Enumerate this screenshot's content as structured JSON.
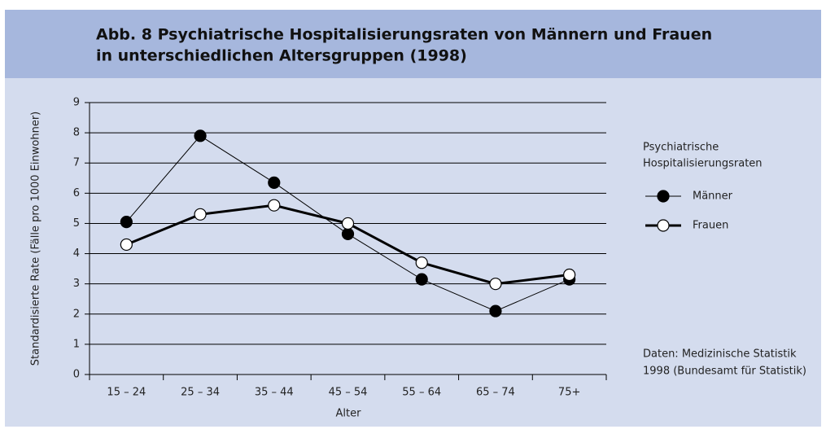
{
  "chart_data": {
    "type": "line",
    "title": [
      "Abb. 8  Psychiatrische Hospitalisierungsraten von Männern und Frauen",
      "in unterschiedlichen Altersgruppen (1998)"
    ],
    "y_label": "Standardisierte Rate (Fälle pro 1000 Einwohner)",
    "x_label": "Alter",
    "categories": [
      "15 – 24",
      "25 – 34",
      "35 – 44",
      "45 – 54",
      "55 – 64",
      "65 – 74",
      "75+"
    ],
    "series": [
      {
        "name": "Männer",
        "color": "#000000",
        "marker_fill": "#000000",
        "line_width": 1,
        "values": [
          5.05,
          7.9,
          6.35,
          4.65,
          3.15,
          2.1,
          3.15
        ]
      },
      {
        "name": "Frauen",
        "color": "#000000",
        "marker_fill": "#ffffff",
        "line_width": 3,
        "values": [
          4.3,
          5.3,
          5.6,
          5.0,
          3.7,
          3.0,
          3.3
        ]
      }
    ],
    "ylim": [
      0,
      9
    ],
    "yticks": [
      0,
      1,
      2,
      3,
      4,
      5,
      6,
      7,
      8,
      9
    ],
    "grid": true,
    "legend_title": [
      "Psychiatrische",
      "Hospitalisierungsraten"
    ],
    "source": [
      "Daten: Medizinische Statistik",
      "1998 (Bundesamt für Statistik)"
    ]
  }
}
